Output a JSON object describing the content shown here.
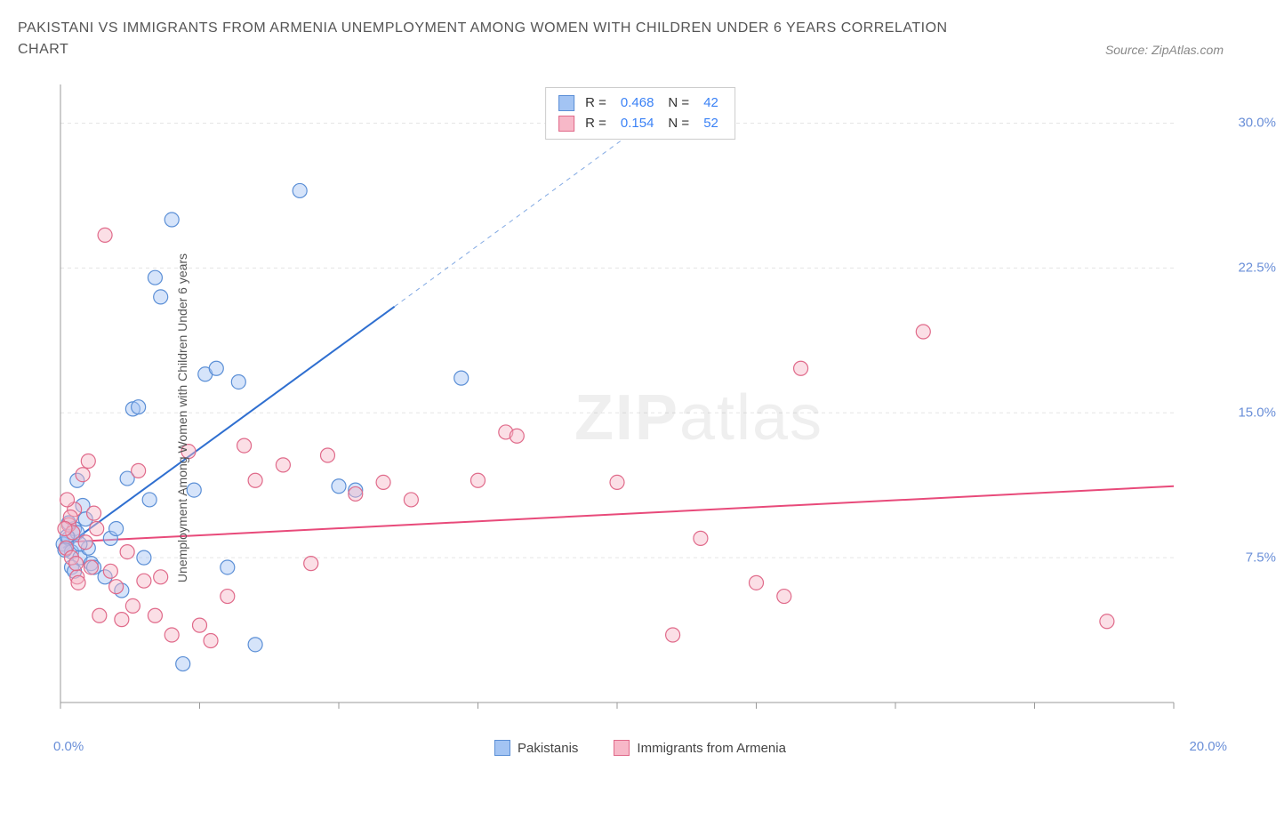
{
  "title": "PAKISTANI VS IMMIGRANTS FROM ARMENIA UNEMPLOYMENT AMONG WOMEN WITH CHILDREN UNDER 6 YEARS CORRELATION CHART",
  "source": "Source: ZipAtlas.com",
  "ylabel": "Unemployment Among Women with Children Under 6 years",
  "watermark_bold": "ZIP",
  "watermark_light": "atlas",
  "chart": {
    "type": "scatter",
    "xlim": [
      0,
      20
    ],
    "ylim": [
      0,
      32
    ],
    "x_ticks": [
      0,
      2.5,
      5,
      7.5,
      10,
      12.5,
      15,
      17.5,
      20
    ],
    "x_tick_labels_shown": {
      "0": "0.0%",
      "20": "20.0%"
    },
    "y_ticks": [
      7.5,
      15.0,
      22.5,
      30.0
    ],
    "y_tick_labels": [
      "7.5%",
      "15.0%",
      "22.5%",
      "30.0%"
    ],
    "grid_color": "#e5e5e5",
    "axis_color": "#999999",
    "background_color": "#ffffff",
    "marker_radius": 8,
    "marker_stroke_width": 1.2,
    "series": [
      {
        "name": "Pakistanis",
        "fill": "#a3c4f3",
        "fill_opacity": 0.45,
        "stroke": "#5b8fd6",
        "r_value": "0.468",
        "n_value": "42",
        "trend": {
          "x1": 0.05,
          "y1": 8.0,
          "x2": 6.0,
          "y2": 20.5,
          "dash_x2": 10.5,
          "dash_y2": 30.0,
          "color": "#2f6fd0",
          "width": 2
        },
        "points": [
          [
            0.05,
            8.2
          ],
          [
            0.1,
            8.0
          ],
          [
            0.15,
            8.5
          ],
          [
            0.2,
            7.8
          ],
          [
            0.25,
            9.0
          ],
          [
            0.3,
            8.8
          ],
          [
            0.35,
            7.5
          ],
          [
            0.4,
            10.2
          ],
          [
            0.45,
            9.5
          ],
          [
            0.3,
            11.5
          ],
          [
            0.5,
            8.0
          ],
          [
            0.55,
            7.2
          ],
          [
            0.6,
            7.0
          ],
          [
            0.8,
            6.5
          ],
          [
            0.9,
            8.5
          ],
          [
            1.0,
            9.0
          ],
          [
            1.1,
            5.8
          ],
          [
            1.2,
            11.6
          ],
          [
            1.3,
            15.2
          ],
          [
            1.4,
            15.3
          ],
          [
            1.5,
            7.5
          ],
          [
            1.6,
            10.5
          ],
          [
            1.7,
            22.0
          ],
          [
            1.8,
            21.0
          ],
          [
            2.0,
            25.0
          ],
          [
            2.2,
            2.0
          ],
          [
            2.4,
            11.0
          ],
          [
            2.6,
            17.0
          ],
          [
            2.8,
            17.3
          ],
          [
            3.0,
            7.0
          ],
          [
            3.2,
            16.6
          ],
          [
            3.5,
            3.0
          ],
          [
            4.3,
            26.5
          ],
          [
            5.0,
            11.2
          ],
          [
            5.3,
            11.0
          ],
          [
            7.2,
            16.8
          ],
          [
            0.2,
            7.0
          ],
          [
            0.25,
            6.8
          ],
          [
            0.15,
            9.3
          ],
          [
            0.35,
            8.2
          ],
          [
            0.12,
            8.6
          ],
          [
            0.08,
            7.9
          ]
        ]
      },
      {
        "name": "Immigrants from Armenia",
        "fill": "#f7b8c8",
        "fill_opacity": 0.45,
        "stroke": "#e06a8a",
        "r_value": "0.154",
        "n_value": "52",
        "trend": {
          "x1": 0.05,
          "y1": 8.3,
          "x2": 20.0,
          "y2": 11.2,
          "color": "#e84a7a",
          "width": 2
        },
        "points": [
          [
            0.1,
            8.0
          ],
          [
            0.15,
            9.2
          ],
          [
            0.2,
            7.5
          ],
          [
            0.25,
            10.0
          ],
          [
            0.3,
            6.5
          ],
          [
            0.4,
            11.8
          ],
          [
            0.5,
            12.5
          ],
          [
            0.6,
            9.8
          ],
          [
            0.7,
            4.5
          ],
          [
            0.8,
            24.2
          ],
          [
            1.0,
            6.0
          ],
          [
            1.1,
            4.3
          ],
          [
            1.3,
            5.0
          ],
          [
            1.4,
            12.0
          ],
          [
            1.5,
            6.3
          ],
          [
            1.7,
            4.5
          ],
          [
            1.8,
            6.5
          ],
          [
            2.0,
            3.5
          ],
          [
            2.3,
            13.0
          ],
          [
            2.5,
            4.0
          ],
          [
            2.7,
            3.2
          ],
          [
            3.0,
            5.5
          ],
          [
            3.3,
            13.3
          ],
          [
            3.5,
            11.5
          ],
          [
            4.0,
            12.3
          ],
          [
            4.5,
            7.2
          ],
          [
            4.8,
            12.8
          ],
          [
            5.3,
            10.8
          ],
          [
            5.8,
            11.4
          ],
          [
            6.3,
            10.5
          ],
          [
            7.5,
            11.5
          ],
          [
            8.0,
            14.0
          ],
          [
            8.2,
            13.8
          ],
          [
            10.0,
            11.4
          ],
          [
            11.0,
            3.5
          ],
          [
            11.5,
            8.5
          ],
          [
            12.5,
            6.2
          ],
          [
            13.0,
            5.5
          ],
          [
            13.3,
            17.3
          ],
          [
            15.5,
            19.2
          ],
          [
            18.8,
            4.2
          ],
          [
            0.22,
            8.8
          ],
          [
            0.28,
            7.2
          ],
          [
            0.18,
            9.6
          ],
          [
            0.32,
            6.2
          ],
          [
            0.45,
            8.3
          ],
          [
            0.55,
            7.0
          ],
          [
            0.65,
            9.0
          ],
          [
            0.12,
            10.5
          ],
          [
            0.9,
            6.8
          ],
          [
            1.2,
            7.8
          ],
          [
            0.08,
            9.0
          ]
        ]
      }
    ]
  },
  "bottom_legend": [
    {
      "label": "Pakistanis",
      "fill": "#a3c4f3",
      "stroke": "#5b8fd6"
    },
    {
      "label": "Immigrants from Armenia",
      "fill": "#f7b8c8",
      "stroke": "#e06a8a"
    }
  ],
  "stats_label_r": "R =",
  "stats_label_n": "N ="
}
